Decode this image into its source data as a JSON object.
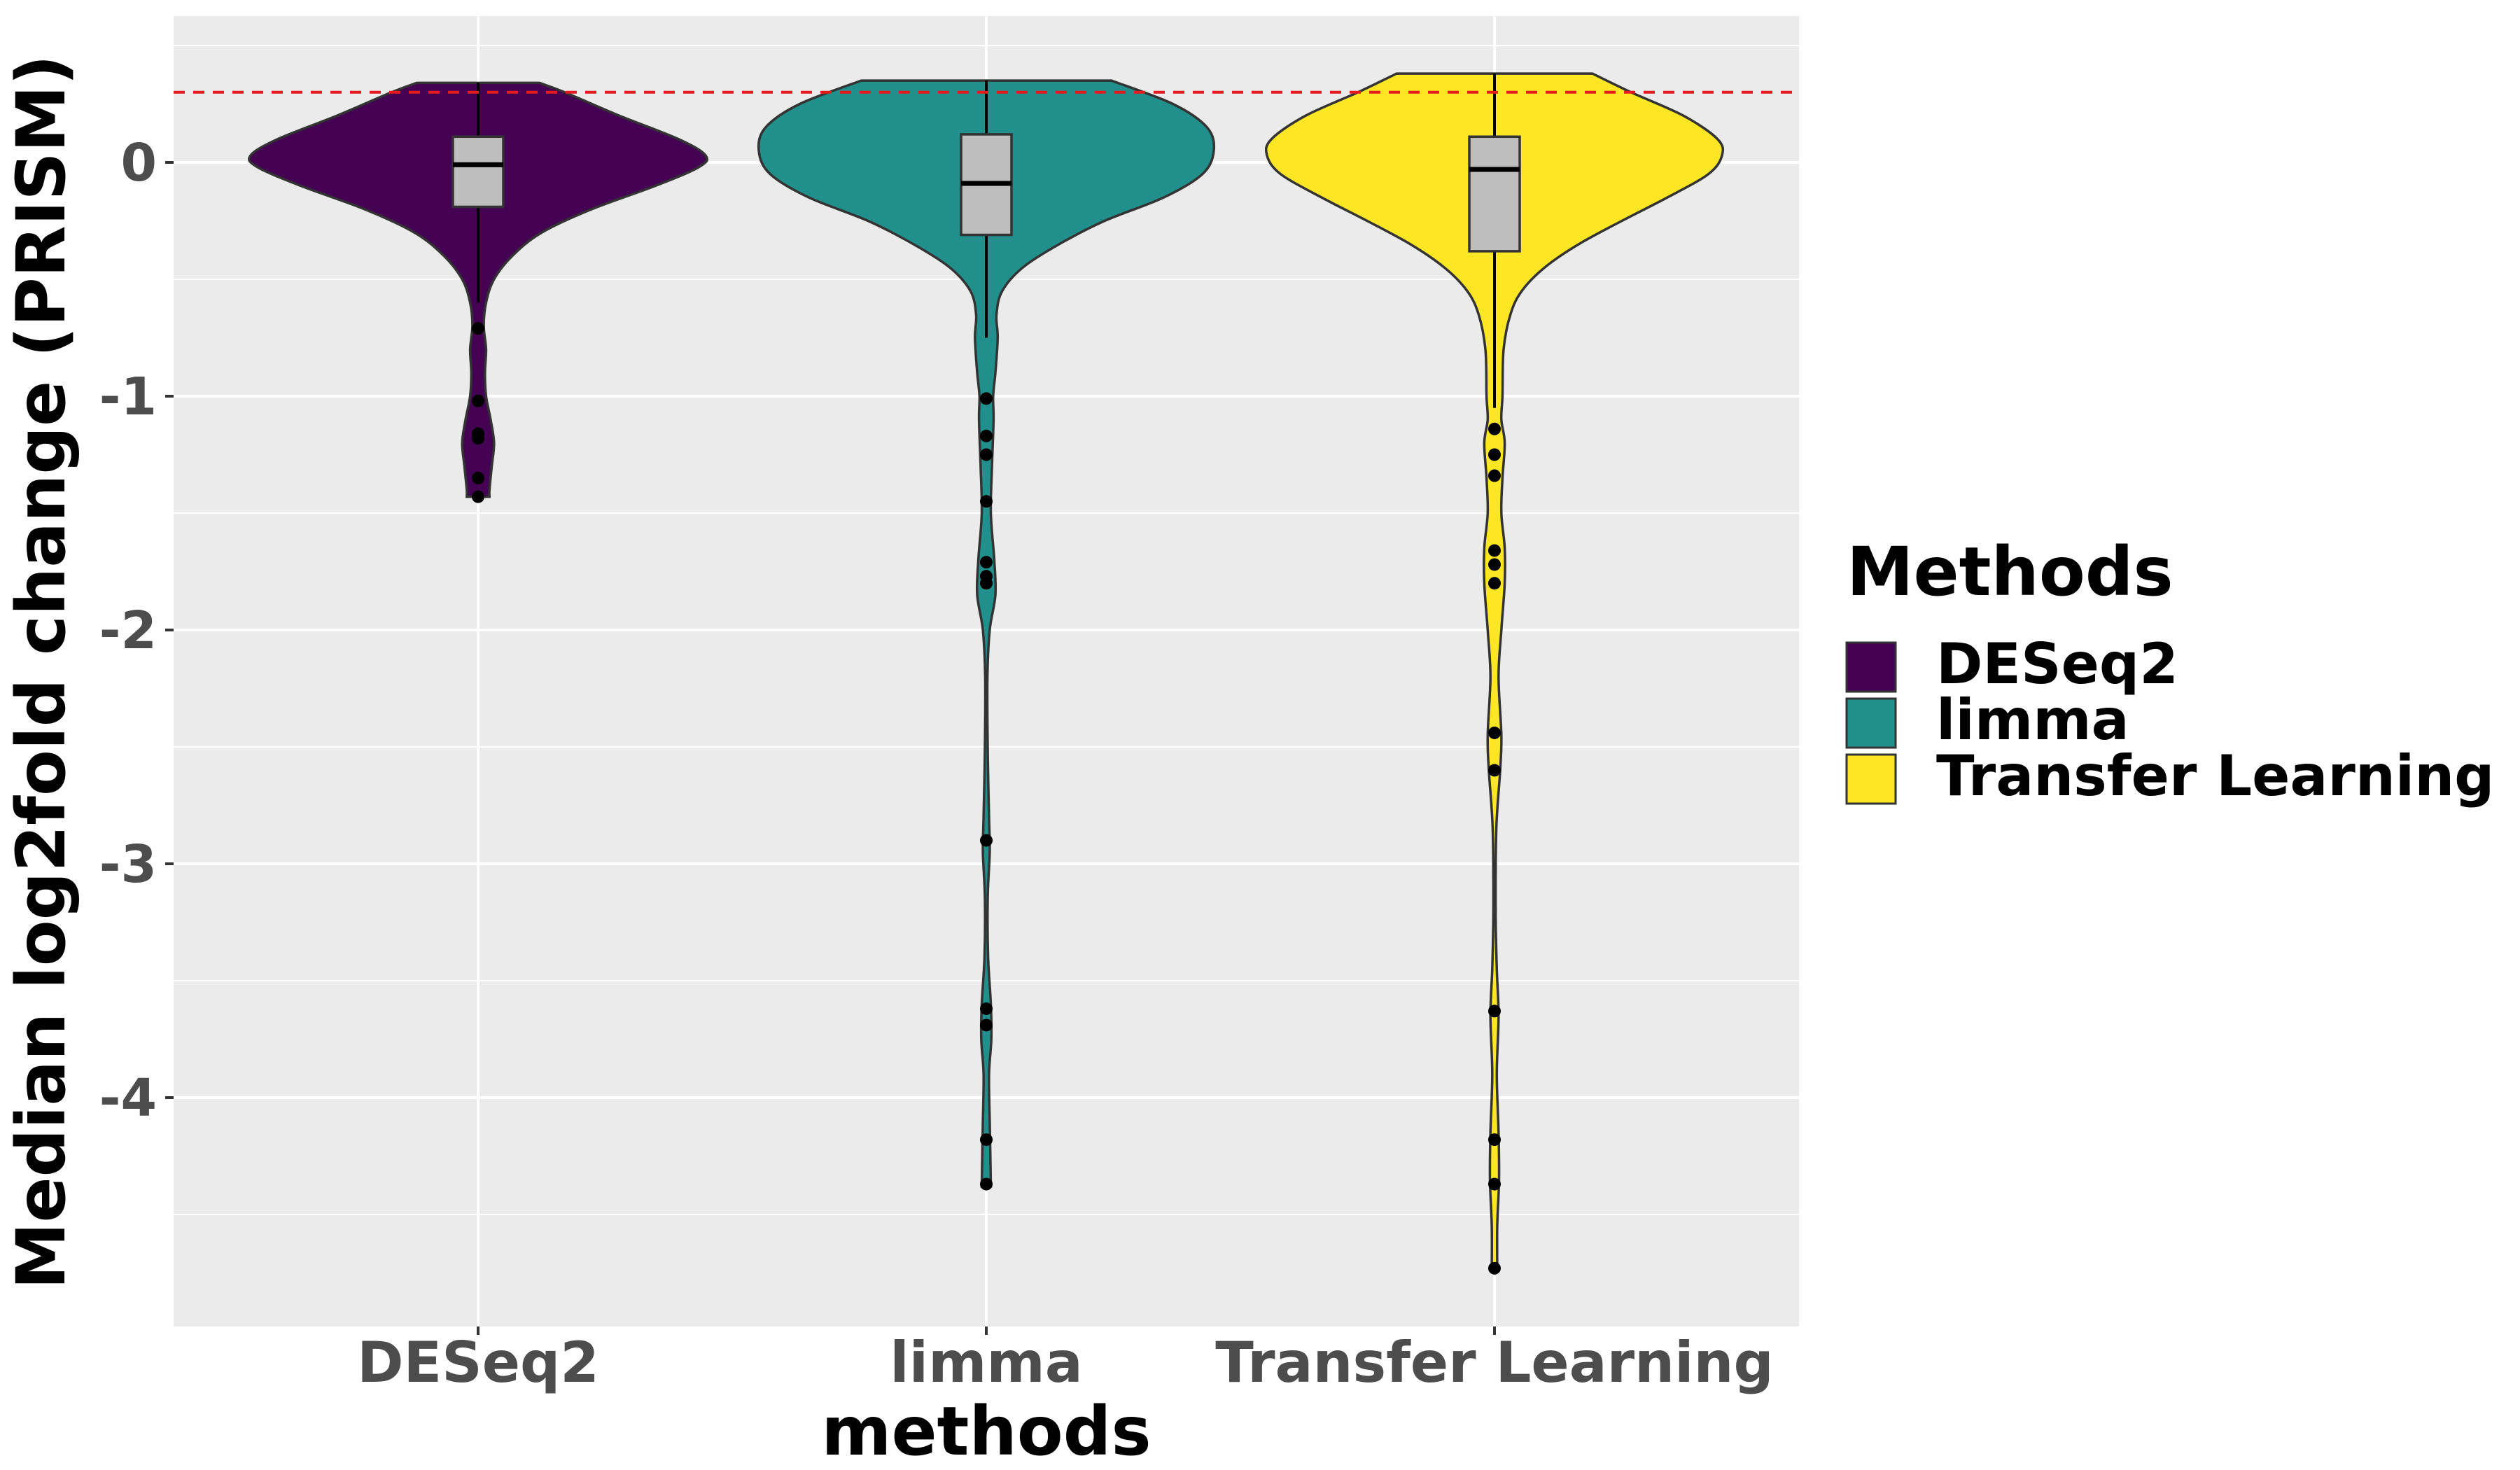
{
  "chart_data": {
    "type": "violin",
    "xlabel": "methods",
    "ylabel": "Median log2fold change (PRISM)",
    "categories": [
      "DESeq2",
      "limma",
      "Transfer Learning"
    ],
    "ylim": [
      -5.0,
      0.62
    ],
    "yticks": [
      {
        "value": 0,
        "label": "0"
      },
      {
        "value": -1,
        "label": "-1"
      },
      {
        "value": -2,
        "label": "-2"
      },
      {
        "value": -3,
        "label": "-3"
      },
      {
        "value": -4,
        "label": "-4"
      }
    ],
    "grid": true,
    "reference_line": {
      "y": 0.3,
      "color": "#e41a1c",
      "style": "dashed"
    },
    "legend": {
      "title": "Methods",
      "placement": "right",
      "entries": [
        {
          "label": "DESeq2",
          "color": "#440154"
        },
        {
          "label": "limma",
          "color": "#21908c"
        },
        {
          "label": "Transfer Learning",
          "color": "#fde725"
        }
      ]
    },
    "series": [
      {
        "category": "DESeq2",
        "color": "#440154",
        "box": {
          "q1": -0.19,
          "median": -0.01,
          "q3": 0.11,
          "whisker_low": -0.6,
          "whisker_high": 0.34
        },
        "outliers": [
          -0.71,
          -1.02,
          -1.16,
          -1.18,
          -1.35,
          -1.43
        ],
        "density": [
          [
            0.34,
            0.27
          ],
          [
            0.3,
            0.38
          ],
          [
            0.2,
            0.62
          ],
          [
            0.1,
            0.88
          ],
          [
            0.03,
            1.0
          ],
          [
            -0.02,
            0.97
          ],
          [
            -0.1,
            0.78
          ],
          [
            -0.2,
            0.5
          ],
          [
            -0.3,
            0.28
          ],
          [
            -0.4,
            0.15
          ],
          [
            -0.5,
            0.07
          ],
          [
            -0.6,
            0.035
          ],
          [
            -0.7,
            0.025
          ],
          [
            -0.8,
            0.035
          ],
          [
            -0.9,
            0.03
          ],
          [
            -1.0,
            0.035
          ],
          [
            -1.1,
            0.055
          ],
          [
            -1.2,
            0.07
          ],
          [
            -1.3,
            0.06
          ],
          [
            -1.4,
            0.05
          ],
          [
            -1.43,
            0.05
          ]
        ]
      },
      {
        "category": "limma",
        "color": "#21908c",
        "box": {
          "q1": -0.31,
          "median": -0.09,
          "q3": 0.12,
          "whisker_low": -0.75,
          "whisker_high": 0.35
        },
        "outliers": [
          -1.01,
          -1.17,
          -1.25,
          -1.45,
          -1.71,
          -1.77,
          -1.8,
          -2.9,
          -3.62,
          -3.69,
          -4.18,
          -4.37
        ],
        "density": [
          [
            0.35,
            0.55
          ],
          [
            0.25,
            0.82
          ],
          [
            0.15,
            0.97
          ],
          [
            0.05,
            1.0
          ],
          [
            -0.05,
            0.95
          ],
          [
            -0.15,
            0.78
          ],
          [
            -0.25,
            0.52
          ],
          [
            -0.35,
            0.32
          ],
          [
            -0.45,
            0.16
          ],
          [
            -0.55,
            0.07
          ],
          [
            -0.65,
            0.045
          ],
          [
            -0.75,
            0.05
          ],
          [
            -0.9,
            0.04
          ],
          [
            -1.0,
            0.03
          ],
          [
            -1.1,
            0.032
          ],
          [
            -1.3,
            0.025
          ],
          [
            -1.5,
            0.02
          ],
          [
            -1.7,
            0.035
          ],
          [
            -1.85,
            0.04
          ],
          [
            -2.0,
            0.015
          ],
          [
            -2.2,
            0.005
          ],
          [
            -2.5,
            0.006
          ],
          [
            -2.8,
            0.012
          ],
          [
            -2.95,
            0.015
          ],
          [
            -3.15,
            0.006
          ],
          [
            -3.4,
            0.008
          ],
          [
            -3.6,
            0.02
          ],
          [
            -3.75,
            0.022
          ],
          [
            -3.9,
            0.012
          ],
          [
            -4.1,
            0.015
          ],
          [
            -4.25,
            0.018
          ],
          [
            -4.38,
            0.02
          ]
        ]
      },
      {
        "category": "Transfer Learning",
        "color": "#fde725",
        "box": {
          "q1": -0.38,
          "median": -0.03,
          "q3": 0.11,
          "whisker_low": -1.05,
          "whisker_high": 0.38
        },
        "outliers": [
          -1.14,
          -1.25,
          -1.34,
          -1.66,
          -1.72,
          -1.8,
          -2.44,
          -2.6,
          -3.63,
          -4.18,
          -4.37,
          -4.73
        ],
        "density": [
          [
            0.38,
            0.43
          ],
          [
            0.3,
            0.6
          ],
          [
            0.2,
            0.83
          ],
          [
            0.1,
            0.98
          ],
          [
            0.03,
            1.0
          ],
          [
            -0.05,
            0.94
          ],
          [
            -0.15,
            0.76
          ],
          [
            -0.25,
            0.56
          ],
          [
            -0.35,
            0.37
          ],
          [
            -0.45,
            0.22
          ],
          [
            -0.55,
            0.12
          ],
          [
            -0.65,
            0.07
          ],
          [
            -0.8,
            0.04
          ],
          [
            -1.0,
            0.035
          ],
          [
            -1.1,
            0.03
          ],
          [
            -1.2,
            0.045
          ],
          [
            -1.35,
            0.035
          ],
          [
            -1.5,
            0.03
          ],
          [
            -1.65,
            0.045
          ],
          [
            -1.8,
            0.045
          ],
          [
            -2.0,
            0.03
          ],
          [
            -2.2,
            0.018
          ],
          [
            -2.45,
            0.03
          ],
          [
            -2.6,
            0.025
          ],
          [
            -2.85,
            0.008
          ],
          [
            -3.2,
            0.005
          ],
          [
            -3.45,
            0.01
          ],
          [
            -3.65,
            0.018
          ],
          [
            -3.9,
            0.01
          ],
          [
            -4.15,
            0.018
          ],
          [
            -4.35,
            0.02
          ],
          [
            -4.55,
            0.012
          ],
          [
            -4.73,
            0.012
          ]
        ]
      }
    ]
  }
}
